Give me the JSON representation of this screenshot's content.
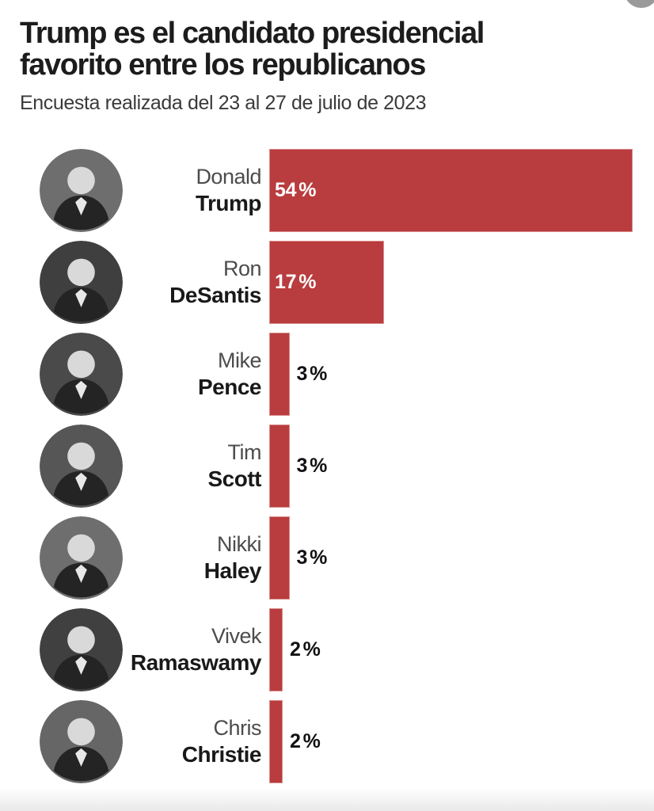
{
  "header": {
    "title_line1": "Trump es el candidato presidencial",
    "title_line2": "favorito entre los republicanos",
    "subtitle": "Encuesta realizada del 23 al 27 de julio de 2023"
  },
  "chart_data": {
    "type": "bar",
    "orientation": "horizontal",
    "title": "Trump es el candidato presidencial favorito entre los republicanos",
    "subtitle": "Encuesta realizada del 23 al 27 de julio de 2023",
    "unit": "%",
    "xlim": [
      0,
      54
    ],
    "grid": false,
    "legend": false,
    "bar_color": "#b93c3e",
    "colors": {
      "title_text": "#1c1c1c",
      "subtitle_text": "#3a3a3a",
      "first_name_text": "#4c4c4c",
      "last_name_text": "#191919",
      "value_label_inside": "#ffffff",
      "value_label_outside": "#111111",
      "corner_circle": "#9a9a9a"
    },
    "categories": [
      "Donald Trump",
      "Ron DeSantis",
      "Mike Pence",
      "Tim Scott",
      "Nikki Haley",
      "Vivek Ramaswamy",
      "Chris Christie"
    ],
    "values": [
      54,
      17,
      3,
      3,
      3,
      2,
      2
    ],
    "candidates": [
      {
        "first": "Donald",
        "last": "Trump",
        "value": 54,
        "label_inside": true,
        "photo_bg": "#6e6e6e"
      },
      {
        "first": "Ron",
        "last": "DeSantis",
        "value": 17,
        "label_inside": true,
        "photo_bg": "#3f3f3f"
      },
      {
        "first": "Mike",
        "last": "Pence",
        "value": 3,
        "label_inside": false,
        "photo_bg": "#4a4a4a"
      },
      {
        "first": "Tim",
        "last": "Scott",
        "value": 3,
        "label_inside": false,
        "photo_bg": "#565656"
      },
      {
        "first": "Nikki",
        "last": "Haley",
        "value": 3,
        "label_inside": false,
        "photo_bg": "#6e6e6e"
      },
      {
        "first": "Vivek",
        "last": "Ramaswamy",
        "value": 2,
        "label_inside": false,
        "photo_bg": "#404040"
      },
      {
        "first": "Chris",
        "last": "Christie",
        "value": 2,
        "label_inside": false,
        "photo_bg": "#666666"
      }
    ]
  }
}
